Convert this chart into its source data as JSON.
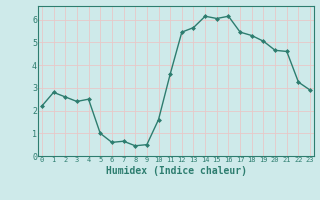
{
  "x": [
    0,
    1,
    2,
    3,
    4,
    5,
    6,
    7,
    8,
    9,
    10,
    11,
    12,
    13,
    14,
    15,
    16,
    17,
    18,
    19,
    20,
    21,
    22,
    23
  ],
  "y": [
    2.2,
    2.8,
    2.6,
    2.4,
    2.5,
    1.0,
    0.6,
    0.65,
    0.45,
    0.5,
    1.6,
    3.6,
    5.45,
    5.65,
    6.15,
    6.05,
    6.15,
    5.45,
    5.3,
    5.05,
    4.65,
    4.6,
    3.25,
    2.9
  ],
  "xlabel": "Humidex (Indice chaleur)",
  "ylim": [
    0.0,
    6.6
  ],
  "xlim": [
    -0.3,
    23.3
  ],
  "yticks": [
    0,
    1,
    2,
    3,
    4,
    5,
    6
  ],
  "xticks": [
    0,
    1,
    2,
    3,
    4,
    5,
    6,
    7,
    8,
    9,
    10,
    11,
    12,
    13,
    14,
    15,
    16,
    17,
    18,
    19,
    20,
    21,
    22,
    23
  ],
  "line_color": "#2d7d6f",
  "marker_color": "#2d7d6f",
  "bg_color": "#ceeaea",
  "grid_color": "#e8c8c8",
  "axis_label_color": "#2d7d6f",
  "tick_label_color": "#2d7d6f",
  "spine_color": "#2d7d6f",
  "xlabel_fontsize": 7,
  "tick_fontsize": 5,
  "linewidth": 1.0,
  "markersize": 2.0
}
